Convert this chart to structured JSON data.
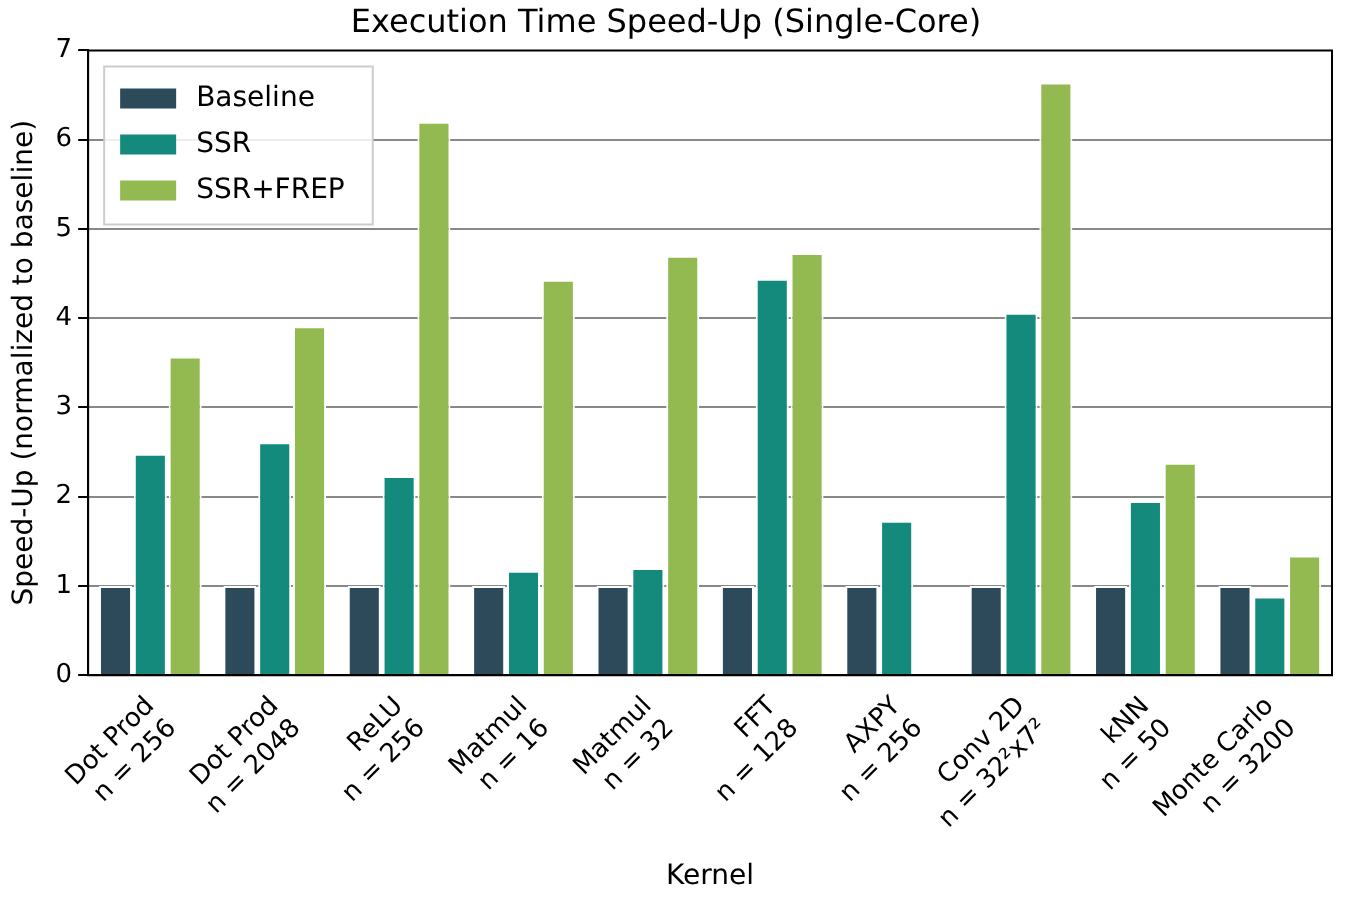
{
  "chart_data": {
    "type": "bar",
    "title": "Execution Time Speed-Up (Single-Core)",
    "xlabel": "Kernel",
    "ylabel": "Speed-Up (normalized to baseline)",
    "categories": [
      "Dot Prod\nn = 256",
      "Dot Prod\nn = 2048",
      "ReLU\nn = 256",
      "Matmul\nn = 16",
      "Matmul\nn = 32",
      "FFT\nn = 128",
      "AXPY\nn = 256",
      "Conv 2D\nn = 32²x7²",
      "kNN\nn = 50",
      "Monte Carlo\nn = 3200"
    ],
    "series": [
      {
        "name": "Baseline",
        "color": "#2c4a5a",
        "values": [
          1,
          1,
          1,
          1,
          1,
          1,
          1,
          1,
          1,
          1
        ]
      },
      {
        "name": "SSR",
        "color": "#138a7c",
        "values": [
          2.48,
          2.61,
          2.23,
          1.17,
          1.2,
          4.44,
          1.73,
          4.06,
          1.95,
          0.88
        ]
      },
      {
        "name": "SSR+FREP",
        "color": "#93b951",
        "values": [
          3.57,
          3.91,
          6.2,
          4.43,
          4.7,
          4.73,
          null,
          6.64,
          2.38,
          1.34
        ]
      }
    ],
    "ylim": [
      0,
      7
    ],
    "yticks": [
      0,
      1,
      2,
      3,
      4,
      5,
      6,
      7
    ],
    "grid": "y",
    "legend": "top left"
  }
}
